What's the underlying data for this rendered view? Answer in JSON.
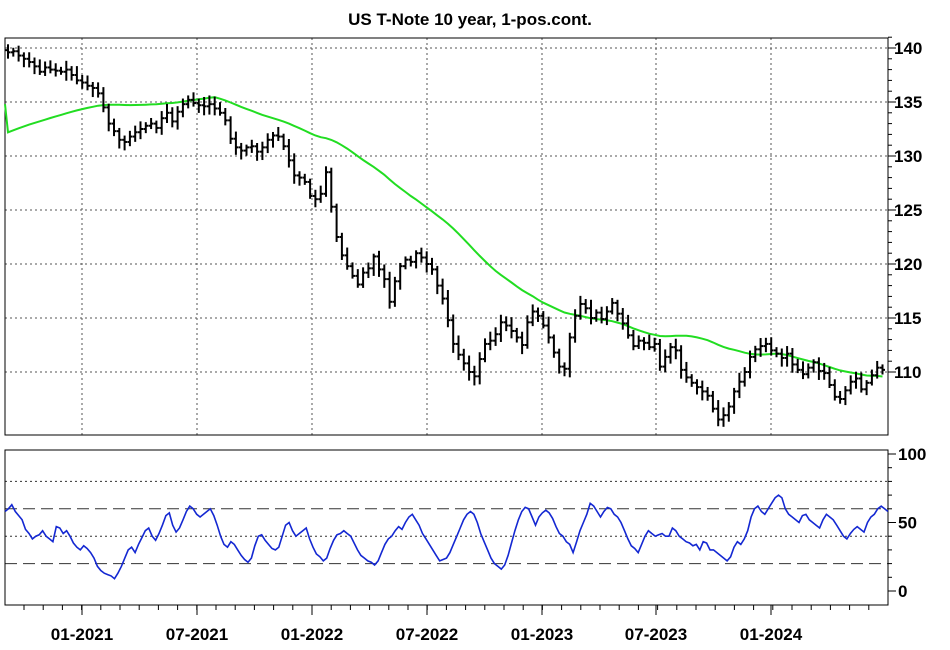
{
  "chart_data": [
    {
      "type": "ohlc",
      "title": "US T-Note 10 year, 1-pos.cont.",
      "y_ticks": [
        110,
        115,
        120,
        125,
        130,
        135,
        140
      ],
      "ylim": [
        104,
        141.5
      ],
      "x_ticks": [
        "01-2021",
        "07-2021",
        "01-2022",
        "07-2022",
        "01-2023",
        "07-2023",
        "01-2024"
      ],
      "grid": true,
      "colors": {
        "bars": "#000000",
        "moving_average": "#22dd22"
      },
      "close": [
        139.6,
        139.7,
        139.3,
        139.0,
        138.7,
        138.3,
        137.8,
        138.2,
        138.0,
        137.9,
        137.8,
        138.0,
        137.5,
        137.0,
        136.8,
        136.5,
        136.3,
        135.8,
        134.5,
        133.0,
        132.3,
        131.5,
        131.3,
        131.8,
        132.2,
        132.5,
        132.8,
        133.0,
        132.6,
        133.5,
        134.0,
        133.2,
        134.1,
        134.8,
        135.2,
        134.9,
        134.7,
        134.6,
        134.8,
        134.4,
        134.0,
        133.3,
        131.6,
        130.8,
        130.5,
        130.8,
        130.9,
        130.4,
        130.8,
        131.5,
        131.9,
        131.8,
        130.9,
        129.6,
        128.2,
        128.0,
        127.6,
        126.3,
        126.0,
        126.5,
        128.5,
        125.3,
        122.5,
        120.8,
        119.8,
        118.9,
        118.1,
        119.2,
        119.6,
        120.7,
        119.5,
        118.6,
        116.5,
        118.4,
        119.8,
        120.4,
        120.2,
        121.0,
        120.6,
        120.0,
        119.5,
        118.0,
        116.8,
        114.8,
        112.6,
        111.6,
        110.8,
        110.0,
        109.6,
        111.2,
        112.6,
        112.9,
        113.5,
        114.6,
        114.3,
        113.8,
        113.2,
        112.5,
        114.6,
        115.6,
        115.2,
        114.3,
        113.2,
        111.8,
        110.5,
        110.3,
        113.2,
        115.2,
        116.3,
        115.9,
        115.0,
        115.5,
        114.9,
        115.6,
        116.4,
        115.4,
        114.5,
        113.4,
        112.4,
        112.9,
        112.7,
        112.3,
        112.6,
        110.5,
        111.4,
        112.3,
        112.0,
        110.2,
        109.5,
        109.0,
        108.6,
        108.2,
        107.8,
        106.6,
        105.6,
        106.0,
        106.8,
        108.2,
        109.1,
        110.0,
        111.4,
        112.1,
        112.4,
        112.6,
        112.0,
        111.7,
        111.3,
        111.7,
        110.7,
        110.2,
        109.8,
        110.4,
        110.9,
        110.1,
        109.9,
        108.8,
        107.7,
        107.5,
        108.3,
        109.1,
        109.4,
        108.4,
        109.0,
        109.7,
        110.4,
        110.2
      ],
      "moving_average_end": 109.9
    },
    {
      "type": "line",
      "y_ticks": [
        0,
        50,
        100
      ],
      "ylim": [
        0,
        100
      ],
      "reference_levels": [
        20,
        40,
        60,
        80
      ],
      "x_ticks": [
        "01-2021",
        "07-2021",
        "01-2022",
        "07-2022",
        "01-2023",
        "07-2023",
        "01-2024"
      ],
      "colors": {
        "line": "#1428d2"
      },
      "values": [
        58,
        60,
        63,
        58,
        55,
        52,
        45,
        42,
        38,
        40,
        41,
        44,
        40,
        38,
        36,
        47,
        46,
        42,
        44,
        40,
        35,
        32,
        30,
        33,
        31,
        28,
        24,
        18,
        15,
        13,
        12,
        11,
        9,
        13,
        18,
        24,
        30,
        32,
        28,
        34,
        39,
        44,
        46,
        40,
        37,
        42,
        48,
        55,
        57,
        48,
        43,
        46,
        52,
        58,
        62,
        60,
        56,
        54,
        56,
        58,
        60,
        55,
        48,
        40,
        34,
        32,
        36,
        34,
        30,
        26,
        23,
        21,
        24,
        33,
        40,
        41,
        37,
        34,
        31,
        30,
        32,
        40,
        48,
        50,
        44,
        40,
        42,
        44,
        46,
        38,
        32,
        27,
        25,
        22,
        24,
        31,
        37,
        41,
        42,
        44,
        42,
        40,
        35,
        30,
        26,
        24,
        22,
        21,
        19,
        22,
        28,
        34,
        38,
        40,
        44,
        47,
        45,
        50,
        54,
        56,
        52,
        48,
        42,
        38,
        34,
        30,
        26,
        22,
        23,
        24,
        28,
        34,
        40,
        46,
        52,
        56,
        58,
        56,
        50,
        42,
        36,
        30,
        24,
        20,
        18,
        16,
        19,
        26,
        35,
        44,
        52,
        58,
        61,
        60,
        54,
        48,
        54,
        57,
        59,
        57,
        53,
        47,
        42,
        40,
        36,
        34,
        28,
        36,
        44,
        50,
        56,
        64,
        62,
        58,
        54,
        58,
        61,
        60,
        56,
        54,
        50,
        44,
        38,
        33,
        31,
        28,
        34,
        40,
        44,
        42,
        40,
        41,
        42,
        40,
        40,
        46,
        44,
        40,
        38,
        36,
        35,
        33,
        34,
        30,
        36,
        35,
        30,
        30,
        28,
        26,
        24,
        22,
        25,
        32,
        36,
        34,
        38,
        44,
        54,
        60,
        62,
        58,
        56,
        60,
        64,
        68,
        70,
        68,
        60,
        56,
        54,
        52,
        50,
        55,
        56,
        52,
        50,
        48,
        46,
        52,
        56,
        54,
        52,
        48,
        44,
        40,
        38,
        42,
        45,
        47,
        45,
        43,
        50,
        54,
        56,
        60,
        62,
        60,
        58
      ]
    }
  ]
}
